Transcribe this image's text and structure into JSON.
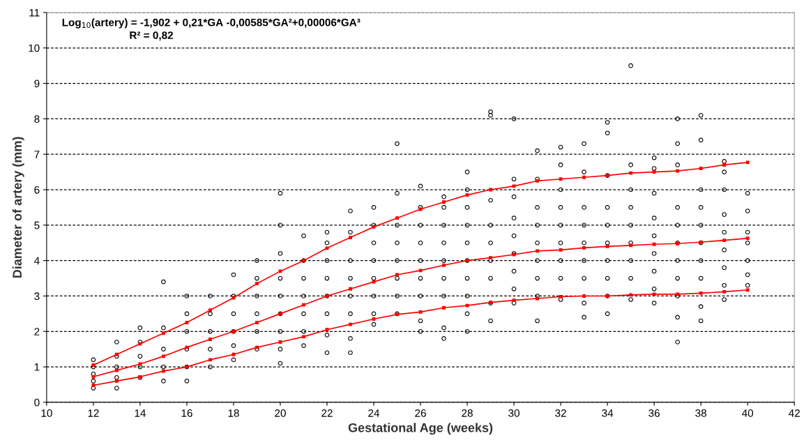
{
  "chart_data": {
    "type": "scatter",
    "xlabel": "Gestational Age (weeks)",
    "ylabel": "Diameter of artery (mm)",
    "annotations": [
      "Log$_{10}$(artery) = -1,902 + 0,21*GA -0,00585*GA²+0,00006*GA³",
      "R² = 0,82"
    ],
    "xlim": [
      10,
      42
    ],
    "xticks": [
      10,
      12,
      14,
      16,
      18,
      20,
      22,
      24,
      26,
      28,
      30,
      32,
      34,
      36,
      38,
      40,
      42
    ],
    "ylim": [
      0,
      11
    ],
    "yticks": [
      0,
      1,
      2,
      3,
      4,
      5,
      6,
      7,
      8,
      9,
      10,
      11
    ],
    "grid": "y",
    "legend": false,
    "series": [
      {
        "color": "#000000",
        "marker": "circle",
        "x": [
          12,
          12,
          12,
          12,
          12,
          13,
          13,
          13,
          13,
          13,
          14,
          14,
          14,
          14,
          14,
          15,
          15,
          15,
          15,
          15,
          16,
          16,
          16,
          16,
          16,
          16,
          17,
          17,
          17,
          17,
          17,
          18,
          18,
          18,
          18,
          18,
          18,
          19,
          19,
          19,
          19,
          19,
          19,
          20,
          20,
          20,
          20,
          20,
          20,
          20,
          20,
          20,
          21,
          21,
          21,
          21,
          21,
          21,
          21,
          22,
          22,
          22,
          22,
          22,
          22,
          22,
          22,
          23,
          23,
          23,
          23,
          23,
          23,
          23,
          23,
          24,
          24,
          24,
          24,
          24,
          24,
          24,
          24,
          25,
          25,
          25,
          25,
          25,
          25,
          25,
          25,
          26,
          26,
          26,
          26,
          26,
          26,
          26,
          26,
          26,
          27,
          27,
          27,
          27,
          27,
          27,
          27,
          27,
          27,
          28,
          28,
          28,
          28,
          28,
          28,
          28,
          28,
          28,
          28,
          29,
          29,
          29,
          29,
          29,
          29,
          29,
          29,
          29,
          30,
          30,
          30,
          30,
          30,
          30,
          30,
          30,
          30,
          31,
          31,
          31,
          31,
          31,
          31,
          31,
          31,
          31,
          32,
          32,
          32,
          32,
          32,
          32,
          32,
          32,
          32,
          33,
          33,
          33,
          33,
          33,
          33,
          33,
          33,
          33,
          34,
          34,
          34,
          34,
          34,
          34,
          34,
          34,
          34,
          34,
          35,
          35,
          35,
          35,
          35,
          35,
          35,
          35,
          35,
          36,
          36,
          36,
          36,
          36,
          36,
          36,
          36,
          36,
          37,
          37,
          37,
          37,
          37,
          37,
          37,
          37,
          37,
          37,
          37,
          38,
          38,
          38,
          38,
          38,
          38,
          38,
          38,
          38,
          38,
          39,
          39,
          39,
          39,
          39,
          39,
          39,
          39,
          39,
          40,
          40,
          40,
          40,
          40,
          40,
          40
        ],
        "values": [
          0.4,
          0.6,
          0.8,
          1.0,
          1.2,
          0.4,
          0.7,
          1.0,
          1.3,
          1.7,
          0.7,
          1.0,
          1.3,
          1.7,
          2.1,
          0.6,
          1.0,
          1.5,
          2.1,
          3.4,
          0.6,
          1.0,
          1.5,
          2.0,
          2.5,
          3.0,
          1.0,
          1.5,
          2.0,
          2.5,
          3.0,
          1.2,
          1.6,
          2.0,
          2.5,
          3.0,
          3.6,
          1.5,
          2.0,
          2.5,
          3.0,
          3.5,
          4.0,
          1.1,
          1.5,
          2.0,
          2.5,
          3.0,
          3.5,
          4.2,
          5.0,
          5.9,
          1.6,
          2.0,
          2.5,
          3.0,
          3.5,
          4.0,
          4.7,
          1.4,
          1.9,
          2.5,
          3.0,
          3.5,
          4.0,
          4.5,
          4.8,
          1.4,
          1.8,
          2.5,
          3.0,
          3.5,
          4.0,
          4.8,
          5.4,
          2.2,
          2.5,
          3.0,
          3.5,
          4.0,
          4.5,
          5.0,
          5.5,
          2.5,
          3.0,
          3.5,
          4.0,
          4.5,
          5.0,
          5.9,
          7.3,
          2.0,
          2.3,
          3.0,
          3.5,
          4.0,
          4.5,
          5.0,
          5.5,
          6.1,
          1.8,
          2.1,
          3.0,
          3.5,
          4.0,
          4.5,
          5.0,
          5.5,
          5.8,
          2.0,
          2.5,
          3.0,
          3.5,
          4.0,
          4.5,
          5.0,
          5.5,
          6.0,
          6.5,
          2.3,
          2.8,
          3.5,
          4.0,
          4.5,
          5.0,
          5.7,
          8.1,
          8.2,
          2.8,
          3.2,
          3.7,
          4.2,
          4.7,
          5.2,
          5.8,
          6.3,
          8.0,
          2.3,
          3.0,
          3.5,
          4.0,
          4.5,
          5.0,
          5.5,
          6.3,
          7.1,
          2.9,
          3.5,
          4.0,
          4.5,
          5.0,
          5.5,
          6.0,
          6.7,
          7.2,
          2.4,
          2.8,
          3.5,
          4.0,
          4.5,
          5.0,
          5.5,
          6.5,
          7.3,
          2.5,
          3.0,
          3.5,
          4.0,
          4.5,
          5.0,
          5.5,
          6.4,
          7.6,
          7.9,
          2.9,
          3.5,
          4.0,
          4.5,
          5.0,
          5.5,
          6.0,
          6.7,
          9.5,
          2.8,
          3.2,
          3.7,
          4.2,
          4.7,
          5.2,
          5.9,
          6.6,
          6.9,
          1.7,
          2.4,
          3.0,
          3.5,
          4.0,
          4.5,
          5.0,
          5.5,
          6.7,
          7.3,
          8.0,
          2.3,
          2.7,
          3.5,
          4.0,
          4.5,
          5.0,
          5.5,
          6.0,
          7.4,
          8.1,
          2.9,
          3.3,
          3.8,
          4.3,
          4.8,
          5.3,
          6.0,
          6.5,
          6.8,
          3.3,
          3.6,
          4.0,
          4.5,
          4.8,
          5.4,
          5.9
        ]
      },
      {
        "type": "line",
        "color": "#ff0000",
        "marker": "square",
        "x": [
          12,
          13,
          14,
          15,
          16,
          17,
          18,
          19,
          20,
          21,
          22,
          23,
          24,
          25,
          26,
          27,
          28,
          29,
          30,
          31,
          32,
          33,
          34,
          35,
          36,
          37,
          38,
          39,
          40
        ],
        "values": [
          1.05,
          1.35,
          1.65,
          1.95,
          2.25,
          2.6,
          2.95,
          3.35,
          3.7,
          4.0,
          4.35,
          4.65,
          4.95,
          5.2,
          5.45,
          5.65,
          5.85,
          6.0,
          6.1,
          6.25,
          6.3,
          6.35,
          6.4,
          6.47,
          6.5,
          6.53,
          6.6,
          6.7,
          6.77
        ]
      },
      {
        "type": "line",
        "color": "#ff0000",
        "marker": "square",
        "x": [
          12,
          13,
          14,
          15,
          16,
          17,
          18,
          19,
          20,
          21,
          22,
          23,
          24,
          25,
          26,
          27,
          28,
          29,
          30,
          31,
          32,
          33,
          34,
          35,
          36,
          37,
          38,
          39,
          40
        ],
        "values": [
          0.72,
          0.9,
          1.08,
          1.3,
          1.55,
          1.78,
          2.0,
          2.25,
          2.5,
          2.75,
          3.0,
          3.2,
          3.4,
          3.6,
          3.72,
          3.87,
          4.0,
          4.08,
          4.17,
          4.27,
          4.3,
          4.36,
          4.4,
          4.43,
          4.46,
          4.48,
          4.52,
          4.57,
          4.63
        ]
      },
      {
        "type": "line",
        "color": "#ff0000",
        "marker": "square",
        "x": [
          12,
          13,
          14,
          15,
          16,
          17,
          18,
          19,
          20,
          21,
          22,
          23,
          24,
          25,
          26,
          27,
          28,
          29,
          30,
          31,
          32,
          33,
          34,
          35,
          36,
          37,
          38,
          39,
          40
        ],
        "values": [
          0.48,
          0.6,
          0.72,
          0.88,
          1.0,
          1.2,
          1.35,
          1.55,
          1.7,
          1.85,
          2.05,
          2.2,
          2.35,
          2.48,
          2.55,
          2.67,
          2.73,
          2.82,
          2.88,
          2.93,
          2.98,
          3.0,
          3.0,
          3.03,
          3.05,
          3.05,
          3.08,
          3.12,
          3.17
        ]
      }
    ]
  }
}
